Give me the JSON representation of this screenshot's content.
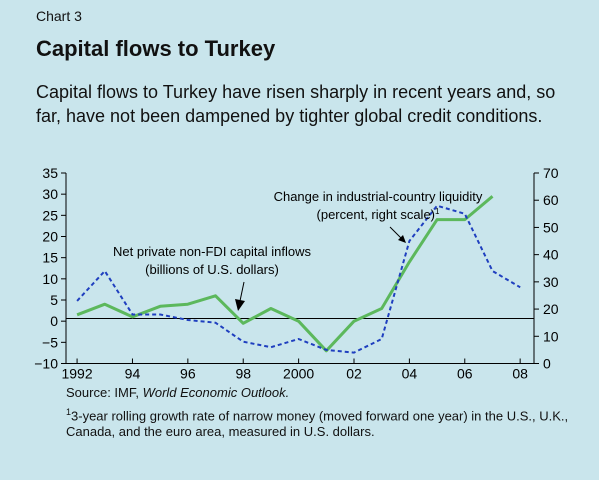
{
  "header": {
    "chart_label": "Chart 3",
    "title": "Capital flows to Turkey",
    "subtitle": "Capital flows to Turkey have risen sharply in recent years and, so far, have not been dampened by tighter global credit conditions."
  },
  "footer": {
    "source_prefix": "Source: IMF, ",
    "source_italic": "World Economic Outlook.",
    "note_marker": "1",
    "note_text": "3-year rolling growth rate of narrow money (moved forward one year) in the U.S., U.K., Canada, and the euro area, measured in U.S. dollars."
  },
  "chart_data": {
    "type": "line",
    "x_tick_labels": [
      "1992",
      "94",
      "96",
      "98",
      "2000",
      "02",
      "04",
      "06",
      "08"
    ],
    "x_ticks": [
      1992,
      1994,
      1996,
      1998,
      2000,
      2002,
      2004,
      2006,
      2008
    ],
    "xlim": [
      1991.6,
      2008.5
    ],
    "y_left_ticks": [
      "35",
      "30",
      "25",
      "20",
      "15",
      "10",
      "5",
      "0",
      "−10"
    ],
    "y_left_tick_values": [
      35,
      30,
      25,
      20,
      15,
      10,
      5,
      0,
      -10
    ],
    "y_left_extra_label": "−5",
    "y_left_extra_value": -5,
    "ylim_left": [
      -10,
      35
    ],
    "y_right_ticks": [
      "70",
      "60",
      "50",
      "40",
      "30",
      "20",
      "10",
      "0"
    ],
    "y_right_tick_values": [
      70,
      60,
      50,
      40,
      30,
      20,
      10,
      0
    ],
    "ylim_right": [
      0,
      70
    ],
    "series": [
      {
        "name": "Net private non-FDI capital inflows (billions of U.S. dollars)",
        "axis": "left",
        "style": "solid",
        "color": "#5cb85c",
        "x": [
          1992,
          1993,
          1994,
          1995,
          1996,
          1997,
          1998,
          1999,
          2000,
          2001,
          2002,
          2003,
          2004,
          2005,
          2006,
          2007
        ],
        "y": [
          1.5,
          4,
          1,
          3.5,
          4,
          6,
          -0.5,
          3,
          0,
          -7,
          0,
          3,
          14,
          24,
          24,
          29.5
        ]
      },
      {
        "name": "Change in industrial-country liquidity (percent, right scale)",
        "axis": "right",
        "style": "dashed",
        "color": "#1f3fbf",
        "x": [
          1992,
          1993,
          1994,
          1995,
          1996,
          1997,
          1998,
          1999,
          2000,
          2001,
          2002,
          2003,
          2004,
          2005,
          2006,
          2007,
          2008
        ],
        "y": [
          23,
          34,
          18,
          18,
          16,
          15,
          8,
          6,
          9,
          5,
          4,
          9,
          45,
          58,
          55,
          34,
          28
        ]
      }
    ],
    "annotations": {
      "liquidity_line1": "Change in industrial-country liquidity",
      "liquidity_line2": "(percent, right scale)",
      "liquidity_marker": "1",
      "inflows_line1": "Net private non-FDI capital inflows",
      "inflows_line2": "(billions of U.S. dollars)"
    }
  }
}
